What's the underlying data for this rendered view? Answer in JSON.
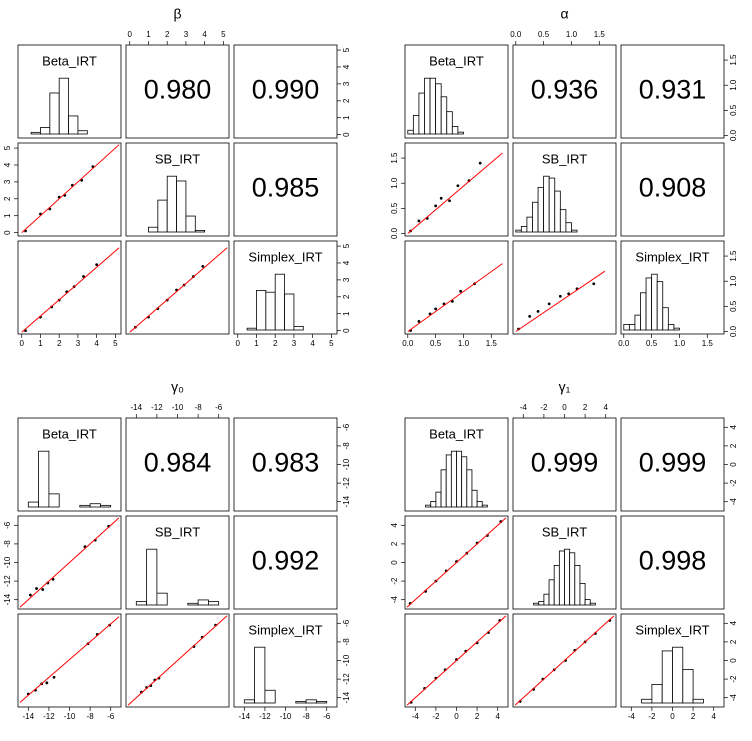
{
  "chart_data": [
    {
      "type": "pairs",
      "title": "β",
      "variables": [
        "Beta_IRT",
        "SB_IRT",
        "Simplex_IRT"
      ],
      "lim": [
        -0.2,
        5.3
      ],
      "ticks": [
        0,
        1,
        2,
        3,
        4,
        5
      ],
      "point_color": "#000000",
      "trend_color": "#ff0000",
      "bar_color": "#ffffff",
      "correlations": {
        "values": [
          0.98,
          0.99,
          0.985
        ],
        "value_labels": [
          "0.980",
          "0.990",
          "0.985"
        ]
      },
      "histograms": [
        {
          "bins": [
            0.5,
            1,
            1.5,
            2,
            2.5,
            3,
            3.5,
            4
          ],
          "counts": [
            1,
            4,
            25,
            34,
            11,
            2,
            0
          ]
        },
        {
          "bins": [
            0.5,
            1,
            1.5,
            2,
            2.5,
            3,
            3.5,
            4
          ],
          "counts": [
            0,
            3,
            20,
            35,
            32,
            10,
            1
          ]
        },
        {
          "bins": [
            0.5,
            1,
            1.5,
            2,
            2.5,
            3,
            3.5
          ],
          "counts": [
            1,
            22,
            21,
            31,
            20,
            2
          ]
        }
      ],
      "scatter": [
        {
          "x": [
            0.2,
            1.0,
            1.5,
            2.0,
            2.3,
            2.7,
            3.2,
            3.8
          ],
          "y": [
            0.1,
            1.1,
            1.4,
            2.1,
            2.2,
            2.8,
            3.1,
            3.9
          ],
          "trend_x": [
            0,
            5.2
          ],
          "trend_y": [
            0,
            5.2
          ]
        },
        {
          "x": [
            0.2,
            1.0,
            1.6,
            2.0,
            2.4,
            2.8,
            3.3,
            4.0
          ],
          "y": [
            0.0,
            0.8,
            1.4,
            1.8,
            2.3,
            2.6,
            3.2,
            3.9
          ],
          "trend_x": [
            0,
            5.2
          ],
          "trend_y": [
            -0.1,
            4.9
          ]
        },
        {
          "x": [
            0.3,
            1.0,
            1.5,
            2.0,
            2.5,
            2.9,
            3.4,
            3.9
          ],
          "y": [
            0.2,
            0.8,
            1.3,
            1.8,
            2.4,
            2.7,
            3.2,
            3.8
          ],
          "trend_x": [
            0,
            5.2
          ],
          "trend_y": [
            -0.1,
            4.9
          ]
        }
      ]
    },
    {
      "type": "pairs",
      "title": "α",
      "variables": [
        "Beta_IRT",
        "SB_IRT",
        "Simplex_IRT"
      ],
      "lim": [
        -0.05,
        1.8
      ],
      "ticks": [
        {
          "value": 0,
          "label": "0.0"
        },
        {
          "value": 0.5,
          "label": "0.5"
        },
        {
          "value": 1,
          "label": "1.0"
        },
        {
          "value": 1.5,
          "label": "1.5"
        }
      ],
      "point_color": "#000000",
      "trend_color": "#ff0000",
      "bar_color": "#ffffff",
      "correlations": {
        "values": [
          0.936,
          0.931,
          0.908
        ],
        "value_labels": [
          "0.936",
          "0.931",
          "0.908"
        ]
      },
      "histograms": [
        {
          "bins": [
            0,
            0.1,
            0.2,
            0.3,
            0.4,
            0.5,
            0.6,
            0.7,
            0.8,
            0.9,
            1.0,
            1.1,
            1.2
          ],
          "counts": [
            2,
            10,
            22,
            30,
            30,
            27,
            20,
            12,
            4,
            1,
            0,
            0
          ]
        },
        {
          "bins": [
            0,
            0.1,
            0.2,
            0.3,
            0.4,
            0.5,
            0.6,
            0.7,
            0.8,
            0.9,
            1.0,
            1.1,
            1.2
          ],
          "counts": [
            1,
            3,
            8,
            16,
            24,
            30,
            29,
            22,
            12,
            5,
            1,
            0
          ]
        },
        {
          "bins": [
            0,
            0.1,
            0.2,
            0.3,
            0.4,
            0.5,
            0.6,
            0.7,
            0.8,
            0.9,
            1.0,
            1.1,
            1.2
          ],
          "counts": [
            3,
            3,
            8,
            20,
            28,
            30,
            26,
            12,
            3,
            1,
            0,
            0
          ]
        }
      ],
      "scatter": [
        {
          "x": [
            0.05,
            0.2,
            0.35,
            0.5,
            0.6,
            0.75,
            0.9,
            1.1,
            1.3
          ],
          "y": [
            0.05,
            0.25,
            0.3,
            0.55,
            0.7,
            0.65,
            0.95,
            1.05,
            1.4
          ],
          "trend_x": [
            0,
            1.7
          ],
          "trend_y": [
            0,
            1.6
          ]
        },
        {
          "x": [
            0.05,
            0.2,
            0.4,
            0.5,
            0.65,
            0.8,
            0.95,
            1.2
          ],
          "y": [
            0.02,
            0.2,
            0.35,
            0.45,
            0.55,
            0.6,
            0.8,
            0.95
          ],
          "trend_x": [
            0,
            1.7
          ],
          "trend_y": [
            0,
            1.35
          ]
        },
        {
          "x": [
            0.05,
            0.25,
            0.4,
            0.6,
            0.8,
            0.95,
            1.1,
            1.4
          ],
          "y": [
            0.05,
            0.3,
            0.4,
            0.55,
            0.7,
            0.75,
            0.85,
            0.95
          ],
          "trend_x": [
            0,
            1.6
          ],
          "trend_y": [
            0,
            1.2
          ]
        }
      ]
    },
    {
      "type": "pairs",
      "title": "γ₀",
      "variables": [
        "Beta_IRT",
        "SB_IRT",
        "Simplex_IRT"
      ],
      "lim": [
        -15,
        -5
      ],
      "ticks": [
        -14,
        -12,
        -10,
        -8,
        -6
      ],
      "point_color": "#000000",
      "trend_color": "#ff0000",
      "bar_color": "#ffffff",
      "correlations": {
        "values": [
          0.984,
          0.983,
          0.992
        ],
        "value_labels": [
          "0.984",
          "0.983",
          "0.992"
        ]
      },
      "histograms": [
        {
          "bins": [
            -14,
            -13,
            -12,
            -11,
            -10,
            -9,
            -8,
            -7,
            -6
          ],
          "counts": [
            3,
            34,
            8,
            0,
            0,
            1,
            2,
            1
          ]
        },
        {
          "bins": [
            -14,
            -13,
            -12,
            -11,
            -10,
            -9,
            -8,
            -7,
            -6
          ],
          "counts": [
            2,
            33,
            7,
            0,
            0,
            1,
            3,
            2
          ]
        },
        {
          "bins": [
            -14,
            -13,
            -12,
            -11,
            -10,
            -9,
            -8,
            -7,
            -6
          ],
          "counts": [
            2,
            35,
            8,
            0,
            0,
            1,
            2,
            1
          ]
        }
      ],
      "scatter": [
        {
          "x": [
            -13.8,
            -13.2,
            -12.6,
            -12.1,
            -11.6,
            -8.5,
            -7.5,
            -6.2
          ],
          "y": [
            -13.5,
            -12.8,
            -12.9,
            -12.2,
            -11.8,
            -8.3,
            -7.6,
            -6.1
          ],
          "trend_x": [
            -14.8,
            -5.2
          ],
          "trend_y": [
            -14.8,
            -5.2
          ]
        },
        {
          "x": [
            -14,
            -13.3,
            -12.7,
            -12.2,
            -11.5,
            -8.2,
            -7.3,
            -6.1
          ],
          "y": [
            -13.6,
            -13.2,
            -12.5,
            -12.4,
            -11.8,
            -8.2,
            -7.2,
            -6.2
          ],
          "trend_x": [
            -14.8,
            -5.2
          ],
          "trend_y": [
            -14.5,
            -5.3
          ]
        },
        {
          "x": [
            -13.5,
            -13,
            -12.6,
            -12.2,
            -11.8,
            -8.4,
            -7.6,
            -6.3
          ],
          "y": [
            -13.4,
            -12.9,
            -12.7,
            -12.1,
            -11.9,
            -8.5,
            -7.5,
            -6.2
          ],
          "trend_x": [
            -14.8,
            -5.2
          ],
          "trend_y": [
            -14.8,
            -5.2
          ]
        }
      ]
    },
    {
      "type": "pairs",
      "title": "γ₁",
      "variables": [
        "Beta_IRT",
        "SB_IRT",
        "Simplex_IRT"
      ],
      "lim": [
        -5,
        5
      ],
      "ticks": [
        -4,
        -2,
        0,
        2,
        4
      ],
      "point_color": "#000000",
      "trend_color": "#ff0000",
      "bar_color": "#ffffff",
      "correlations": {
        "values": [
          0.999,
          0.999,
          0.998
        ],
        "value_labels": [
          "0.999",
          "0.999",
          "0.998"
        ]
      },
      "histograms": [
        {
          "bins": [
            -3,
            -2.5,
            -2,
            -1.5,
            -1,
            -0.5,
            0,
            0.5,
            1,
            1.5,
            2,
            2.5,
            3
          ],
          "counts": [
            1,
            3,
            8,
            20,
            28,
            30,
            30,
            27,
            20,
            9,
            3,
            1
          ]
        },
        {
          "bins": [
            -3,
            -2.5,
            -2,
            -1.5,
            -1,
            -0.5,
            0,
            0.5,
            1,
            1.5,
            2,
            2.5,
            3
          ],
          "counts": [
            1,
            2,
            6,
            14,
            22,
            30,
            31,
            29,
            22,
            12,
            3,
            1
          ]
        },
        {
          "bins": [
            -3,
            -2,
            -1,
            0,
            1,
            2,
            3
          ],
          "counts": [
            2,
            10,
            28,
            30,
            18,
            2
          ]
        }
      ],
      "scatter": [
        {
          "x": [
            -4.5,
            -3,
            -2,
            -1,
            0,
            1,
            2,
            3,
            4.3
          ],
          "y": [
            -4.4,
            -3.1,
            -2,
            -0.9,
            0.1,
            1,
            2.1,
            2.9,
            4.4
          ],
          "trend_x": [
            -4.8,
            4.8
          ],
          "trend_y": [
            -4.8,
            4.8
          ]
        },
        {
          "x": [
            -4.4,
            -3.1,
            -2,
            -1.1,
            0,
            0.9,
            2,
            3.1,
            4.2
          ],
          "y": [
            -4.5,
            -3,
            -1.9,
            -1,
            0.1,
            1,
            1.9,
            3,
            4.3
          ],
          "trend_x": [
            -4.8,
            4.8
          ],
          "trend_y": [
            -4.8,
            4.8
          ]
        },
        {
          "x": [
            -4.3,
            -3,
            -2.1,
            -1,
            0.1,
            1,
            2,
            3,
            4.4
          ],
          "y": [
            -4.4,
            -3.1,
            -2,
            -1,
            0,
            1.1,
            2,
            2.9,
            4.3
          ],
          "trend_x": [
            -4.8,
            4.8
          ],
          "trend_y": [
            -4.8,
            4.8
          ]
        }
      ]
    }
  ]
}
